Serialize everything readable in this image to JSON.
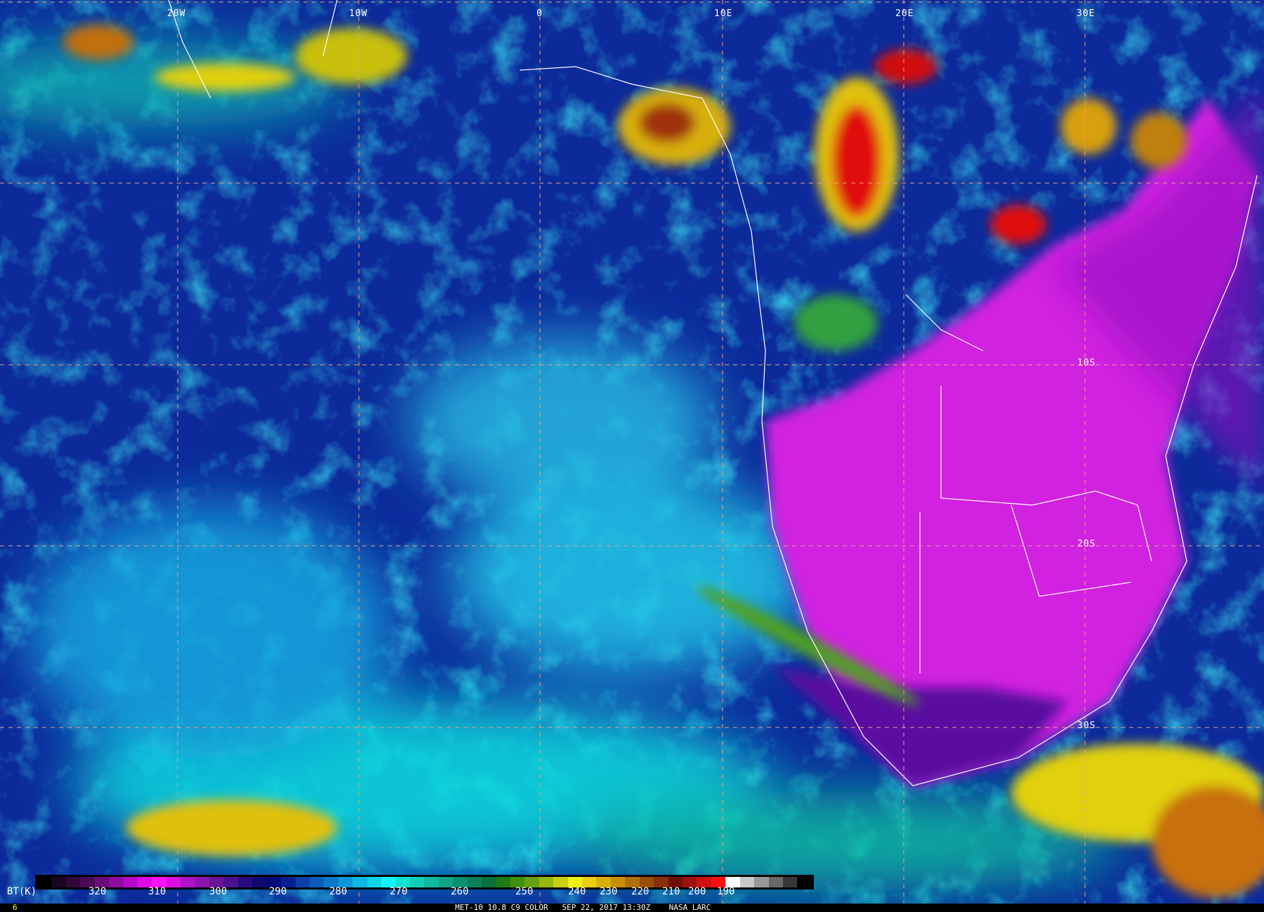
{
  "map": {
    "longitude_labels": [
      "20W",
      "10W",
      "0",
      "10E",
      "20E",
      "30E"
    ],
    "latitude_labels": [
      "10S",
      "20S",
      "30S"
    ],
    "grid_color": "#f0a080",
    "border_color": "#ffffff"
  },
  "colorbar": {
    "label": "BT(K)",
    "ticks": [
      "320",
      "310",
      "300",
      "290",
      "280",
      "270",
      "260",
      "250",
      "240",
      "230",
      "220",
      "210",
      "200",
      "190"
    ],
    "colors": [
      "#000000",
      "#1a0620",
      "#30083a",
      "#4a0a55",
      "#6a0c78",
      "#900aa0",
      "#b80ac8",
      "#e00ae8",
      "#ff10ff",
      "#d810e0",
      "#b012c8",
      "#8c14b0",
      "#6a1498",
      "#4a1090",
      "#2a0c80",
      "#100a70",
      "#000a78",
      "#062090",
      "#0a40a8",
      "#0a5cb8",
      "#0c78c8",
      "#0c98d8",
      "#0cb8e0",
      "#0cd4e8",
      "#10f4f8",
      "#10e0d0",
      "#10ccb8",
      "#10b8a0",
      "#10a488",
      "#0a9070",
      "#0a8058",
      "#087038",
      "#207c10",
      "#409010",
      "#68a010",
      "#98b810",
      "#c8d010",
      "#f0f010",
      "#e8d010",
      "#d8b008",
      "#c89008",
      "#b07008",
      "#985008",
      "#883008",
      "#701008",
      "#a01010",
      "#d01010",
      "#ff1010",
      "#ffffff",
      "#c8c8c8",
      "#989898",
      "#686868",
      "#383838",
      "#000000"
    ]
  },
  "footer": {
    "indicator": "6",
    "caption": "MET-10 10.8 C9 COLOR   SEP 22, 2017 13:30Z    NASA LARC"
  }
}
